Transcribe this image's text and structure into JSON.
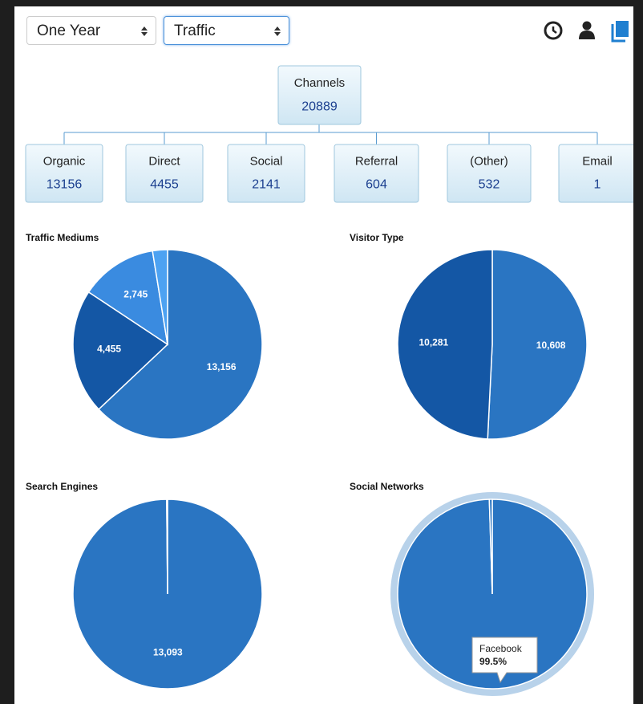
{
  "toolbar": {
    "period": "One Year",
    "view": "Traffic"
  },
  "tree": {
    "root": {
      "label": "Channels",
      "value": "20889"
    },
    "children": [
      {
        "label": "Organic",
        "value": "13156"
      },
      {
        "label": "Direct",
        "value": "4455"
      },
      {
        "label": "Social",
        "value": "2141"
      },
      {
        "label": "Referral",
        "value": "604"
      },
      {
        "label": "(Other)",
        "value": "532"
      },
      {
        "label": "Email",
        "value": "1"
      }
    ]
  },
  "charts": [
    {
      "type": "pie",
      "title": "Traffic Mediums",
      "values": [
        13156,
        4455,
        2745,
        533
      ],
      "value_labels": [
        "13,156",
        "4,455",
        "2,745",
        null
      ],
      "colors": [
        "#2a75c2",
        "#1457a5",
        "#3a8be0",
        "#4da2f2"
      ]
    },
    {
      "type": "pie",
      "title": "Visitor Type",
      "values": [
        10608,
        10281
      ],
      "value_labels": [
        "10,608",
        "10,281"
      ],
      "colors": [
        "#2a75c2",
        "#1457a5"
      ]
    },
    {
      "type": "pie",
      "title": "Search Engines",
      "values": [
        13093,
        20
      ],
      "value_labels": [
        "13,093",
        null
      ],
      "colors": [
        "#2a75c2",
        "#2a75c2"
      ]
    },
    {
      "type": "pie",
      "title": "Social Networks",
      "categories": [
        "Facebook",
        null
      ],
      "values": [
        99.5,
        0.5
      ],
      "colors": [
        "#2a75c2",
        "#2a75c2"
      ],
      "highlight": 0,
      "tooltip": {
        "name": "Facebook",
        "value": "99.5%"
      }
    }
  ]
}
